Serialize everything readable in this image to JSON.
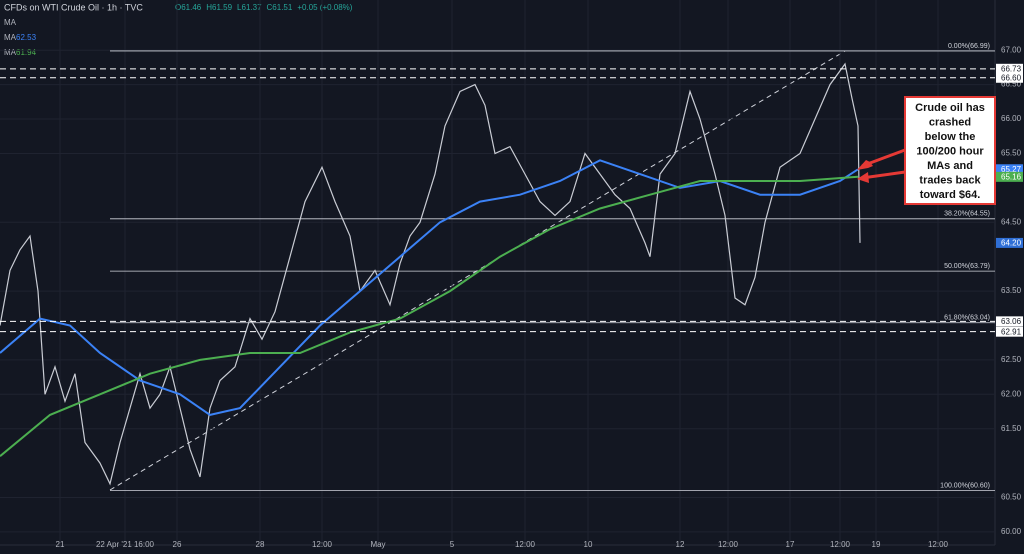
{
  "chart_data": {
    "type": "line",
    "title": "CFDs on WTI Crude Oil · 1h · TVC",
    "ohlc": [
      "O61.46",
      "H61.59",
      "L61.37",
      "C61.51",
      "+0.05 (+0.08%)"
    ],
    "indicators": [
      {
        "name": "MA",
        "value_label": ""
      },
      {
        "name": "MA",
        "value_label": "62.53",
        "color": "#3b82f6"
      },
      {
        "name": "MA",
        "value_label": "61.94",
        "color": "#4caf50"
      }
    ],
    "series": [
      {
        "color": "#c9ccd4",
        "x": [
          0,
          10,
          20,
          30,
          38,
          45,
          55,
          65,
          75,
          85,
          100,
          110,
          120,
          130,
          140,
          150,
          160,
          170,
          180,
          190,
          200,
          210,
          220,
          235,
          250,
          262,
          275,
          290,
          305,
          322,
          335,
          350,
          360,
          375,
          390,
          400,
          410,
          420,
          435,
          445,
          460,
          475,
          485,
          495,
          510,
          525,
          540,
          555,
          570,
          585,
          600,
          615,
          630,
          645,
          650,
          660,
          675,
          690,
          700,
          715,
          725,
          735,
          745,
          755,
          765,
          780,
          800,
          815,
          830,
          845,
          852,
          858,
          860
        ],
        "values": [
          63.0,
          63.8,
          64.1,
          64.3,
          63.5,
          62.0,
          62.4,
          61.9,
          62.3,
          61.3,
          61.0,
          60.7,
          61.3,
          61.8,
          62.3,
          61.8,
          62.0,
          62.4,
          61.8,
          61.2,
          60.8,
          61.8,
          62.2,
          62.4,
          63.1,
          62.8,
          63.2,
          64.0,
          64.8,
          65.3,
          64.8,
          64.3,
          63.5,
          63.8,
          63.3,
          63.9,
          64.3,
          64.5,
          65.2,
          65.9,
          66.4,
          66.5,
          66.2,
          65.5,
          65.6,
          65.2,
          64.8,
          64.6,
          64.8,
          65.5,
          65.2,
          64.9,
          64.7,
          64.2,
          64.0,
          65.2,
          65.5,
          66.4,
          66.0,
          65.2,
          64.6,
          63.4,
          63.3,
          63.7,
          64.5,
          65.3,
          65.5,
          66.0,
          66.5,
          66.8,
          66.3,
          65.9,
          64.2
        ]
      },
      {
        "color": "#3b82f6",
        "x": [
          0,
          40,
          70,
          100,
          140,
          180,
          210,
          240,
          280,
          320,
          360,
          400,
          440,
          480,
          520,
          560,
          600,
          640,
          680,
          720,
          760,
          800,
          840,
          858
        ],
        "values": [
          62.6,
          63.1,
          63.0,
          62.6,
          62.2,
          62.0,
          61.7,
          61.8,
          62.4,
          63.0,
          63.5,
          64.0,
          64.5,
          64.8,
          64.9,
          65.1,
          65.4,
          65.2,
          65.0,
          65.1,
          64.9,
          64.9,
          65.1,
          65.27
        ]
      },
      {
        "color": "#4caf50",
        "x": [
          0,
          50,
          100,
          150,
          200,
          250,
          300,
          350,
          400,
          450,
          500,
          550,
          600,
          650,
          700,
          750,
          800,
          858
        ],
        "values": [
          61.1,
          61.7,
          62.0,
          62.3,
          62.5,
          62.6,
          62.6,
          62.9,
          63.1,
          63.5,
          64.0,
          64.4,
          64.7,
          64.9,
          65.1,
          65.1,
          65.1,
          65.16
        ]
      }
    ],
    "xlim": [
      0,
      995
    ],
    "xticks": [
      {
        "value": 60,
        "label": "21"
      },
      {
        "value": 125,
        "label": "22 Apr '21  16:00"
      },
      {
        "value": 177,
        "label": "26"
      },
      {
        "value": 260,
        "label": "28"
      },
      {
        "value": 322,
        "label": "12:00"
      },
      {
        "value": 378,
        "label": "May"
      },
      {
        "value": 452,
        "label": "5"
      },
      {
        "value": 525,
        "label": "12:00"
      },
      {
        "value": 588,
        "label": "10"
      },
      {
        "value": 680,
        "label": "12"
      },
      {
        "value": 728,
        "label": "12:00"
      },
      {
        "value": 790,
        "label": "17"
      },
      {
        "value": 840,
        "label": "12:00"
      },
      {
        "value": 876,
        "label": "19"
      },
      {
        "value": 938,
        "label": "12:00"
      }
    ],
    "ylim": [
      59.81,
      67.73
    ],
    "yticks": [
      {
        "value": 60,
        "label": "60.00"
      },
      {
        "value": 60.5,
        "label": "60.50"
      },
      {
        "value": 61.5,
        "label": "61.50"
      },
      {
        "value": 62,
        "label": "62.00"
      },
      {
        "value": 62.5,
        "label": "62.50"
      },
      {
        "value": 63.5,
        "label": "63.50"
      },
      {
        "value": 64.5,
        "label": "64.50"
      },
      {
        "value": 65.5,
        "label": "65.50"
      },
      {
        "value": 66,
        "label": "66.00"
      },
      {
        "value": 66.5,
        "label": "66.50"
      },
      {
        "value": 67,
        "label": "67.00"
      }
    ],
    "levels": [
      {
        "value": 66.99,
        "label": "0.00%(66.99)"
      },
      {
        "value": 64.55,
        "label": "38.20%(64.55)"
      },
      {
        "value": 63.79,
        "label": "50.00%(63.79)"
      },
      {
        "value": 63.04,
        "label": "61.80%(63.04)"
      },
      {
        "value": 60.6,
        "label": "100.00%(60.60)"
      }
    ],
    "price_tags": [
      {
        "value": 66.73,
        "label": "66.73",
        "color": "#ffffff",
        "dashed": true
      },
      {
        "value": 66.6,
        "label": "66.60",
        "color": "#ffffff",
        "dashed": true
      },
      {
        "value": 65.27,
        "label": "65.27",
        "color": "#3b82f6",
        "dashed": false
      },
      {
        "value": 65.16,
        "label": "65.16",
        "color": "#4caf50",
        "dashed": false
      },
      {
        "value": 64.2,
        "label": "64.20",
        "color": "#2f6fd6",
        "dashed": false
      },
      {
        "value": 63.06,
        "label": "63.06",
        "color": "#ffffff",
        "dashed": true
      },
      {
        "value": 62.91,
        "label": "62.91",
        "color": "#ffffff",
        "dashed": true
      }
    ],
    "grid": true,
    "annotation": [
      "Crude oil has",
      "crashed",
      "below the",
      "100/200 hour",
      "MAs and",
      "trades back",
      "toward $64."
    ]
  }
}
